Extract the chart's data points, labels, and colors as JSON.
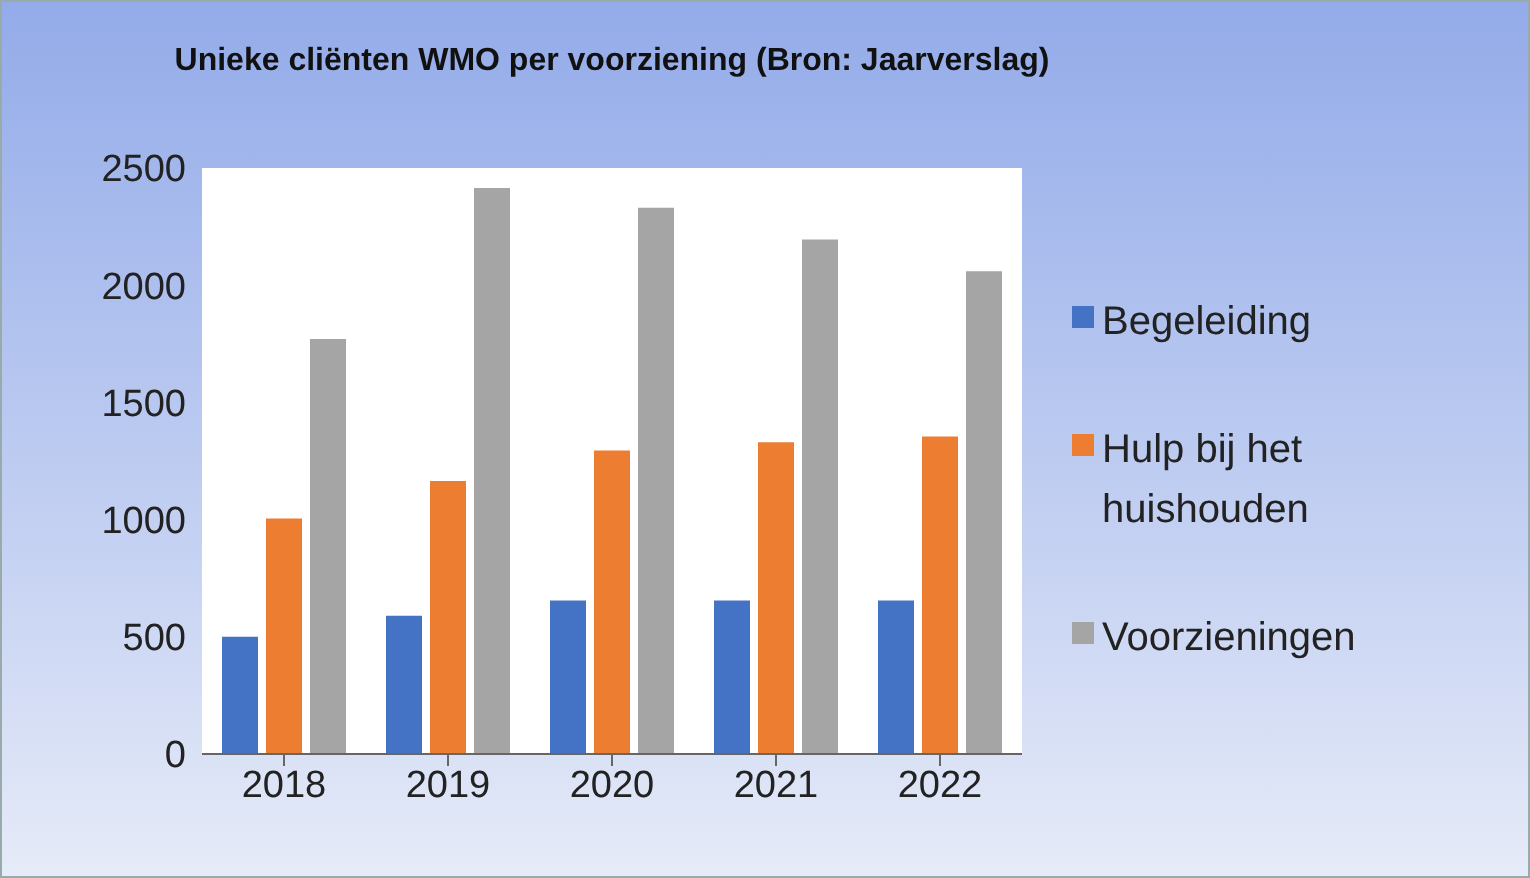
{
  "chart_data": {
    "type": "bar",
    "title": "Unieke cliënten WMO per voorziening (Bron: Jaarverslag)",
    "categories": [
      "2018",
      "2019",
      "2020",
      "2021",
      "2022"
    ],
    "series": [
      {
        "name": "Begeleiding",
        "color": "#4472c4",
        "values": [
          500,
          590,
          655,
          655,
          655
        ]
      },
      {
        "name": "Hulp bij het huishouden",
        "color": "#ed7d31",
        "values": [
          1005,
          1165,
          1295,
          1330,
          1355
        ]
      },
      {
        "name": "Voorzieningen",
        "color": "#a5a5a5",
        "values": [
          1770,
          2415,
          2330,
          2195,
          2060
        ]
      }
    ],
    "ylim": [
      0,
      2500
    ],
    "yticks": [
      0,
      500,
      1000,
      1500,
      2000,
      2500
    ],
    "grid": false,
    "legend": "right"
  }
}
